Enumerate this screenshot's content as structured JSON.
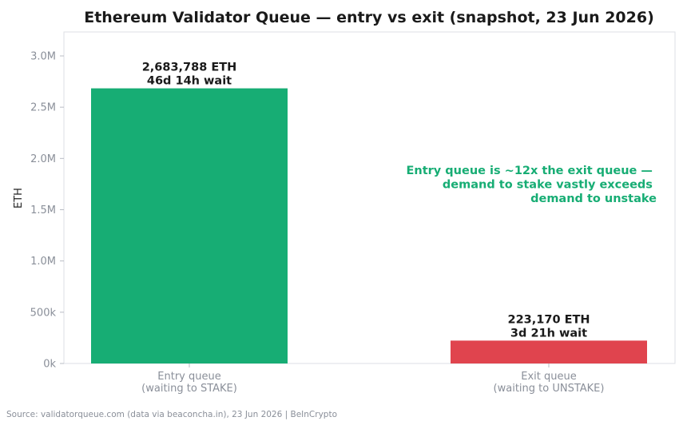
{
  "chart_data": {
    "type": "bar",
    "title": "Ethereum Validator Queue — entry vs exit (snapshot, 23 Jun 2026)",
    "ylabel": "ETH",
    "xlabel": "",
    "ylim": [
      0,
      3250000
    ],
    "yticks": [
      0,
      500000,
      1000000,
      1500000,
      2000000,
      2500000,
      3000000
    ],
    "ytick_labels": [
      "0k",
      "500k",
      "1.0M",
      "1.5M",
      "2.0M",
      "2.5M",
      "3.0M"
    ],
    "grid": false,
    "categories": [
      [
        "Entry queue",
        "(waiting to STAKE)"
      ],
      [
        "Exit queue",
        "(waiting to UNSTAKE)"
      ]
    ],
    "values": [
      2683788,
      223170
    ],
    "colors": [
      "#17ad74",
      "#e0444e"
    ],
    "data_labels": [
      [
        "2,683,788 ETH",
        "46d 14h wait"
      ],
      [
        "223,170 ETH",
        "3d 21h wait"
      ]
    ],
    "annotation": {
      "lines": [
        "Entry queue is ~12x the exit queue —",
        "demand to stake vastly exceeds",
        "demand to unstake"
      ],
      "color": "#17ad74"
    },
    "source": "Source: validatorqueue.com (data via beaconcha.in), 23 Jun 2026 | BeInCrypto"
  }
}
